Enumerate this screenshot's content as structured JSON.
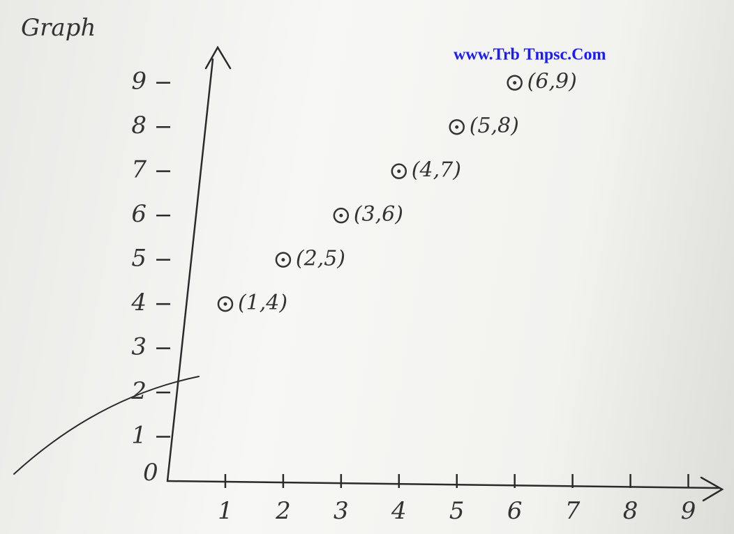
{
  "chart_data": {
    "type": "scatter",
    "title": "Graph",
    "watermark": "www.Trb Tnpsc.Com",
    "x": [
      1,
      2,
      3,
      4,
      5,
      6
    ],
    "values": [
      4,
      5,
      6,
      7,
      8,
      9
    ],
    "value_labels": [
      "(1,4)",
      "(2,5)",
      "(3,6)",
      "(4,7)",
      "(5,8)",
      "(6,9)"
    ],
    "xlim": [
      0,
      9.5
    ],
    "ylim": [
      0,
      9.5
    ],
    "xticks": [
      1,
      2,
      3,
      4,
      5,
      6,
      7,
      8,
      9
    ],
    "yticks": [
      1,
      2,
      3,
      4,
      5,
      6,
      7,
      8,
      9
    ],
    "origin_label": 0,
    "color": "#333333"
  }
}
